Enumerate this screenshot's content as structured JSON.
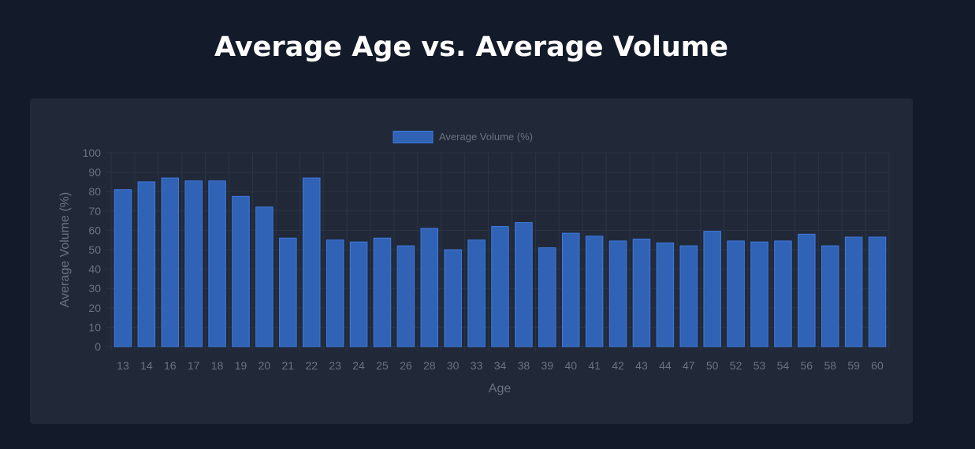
{
  "page": {
    "title": "Average Age vs. Average Volume"
  },
  "colors": {
    "background": "#131a29",
    "card": "#212938",
    "bar_fill": "#3062b5",
    "bar_stroke": "#3f7ae0",
    "grid": "#2c3445",
    "text": "#6b7280"
  },
  "chart_data": {
    "type": "bar",
    "legend": {
      "label": "Average Volume (%)",
      "position": "top"
    },
    "xlabel": "Age",
    "ylabel": "Average Volume (%)",
    "ylim": [
      0,
      100
    ],
    "yticks": [
      0,
      10,
      20,
      30,
      40,
      50,
      60,
      70,
      80,
      90,
      100
    ],
    "grid": true,
    "categories": [
      "13",
      "14",
      "16",
      "17",
      "18",
      "19",
      "20",
      "21",
      "22",
      "23",
      "24",
      "25",
      "26",
      "28",
      "30",
      "33",
      "34",
      "38",
      "39",
      "40",
      "41",
      "42",
      "43",
      "44",
      "47",
      "50",
      "52",
      "53",
      "54",
      "56",
      "58",
      "59",
      "60"
    ],
    "series": [
      {
        "name": "Average Volume (%)",
        "values": [
          81,
          85,
          87,
          85.5,
          85.5,
          77.5,
          72,
          56,
          87,
          55,
          54,
          56,
          52,
          61,
          50,
          55,
          62,
          64,
          51,
          58.5,
          57,
          54.5,
          55.5,
          53.5,
          52,
          59.5,
          54.5,
          54,
          54.5,
          58,
          52,
          56.5,
          56.5
        ]
      }
    ]
  }
}
